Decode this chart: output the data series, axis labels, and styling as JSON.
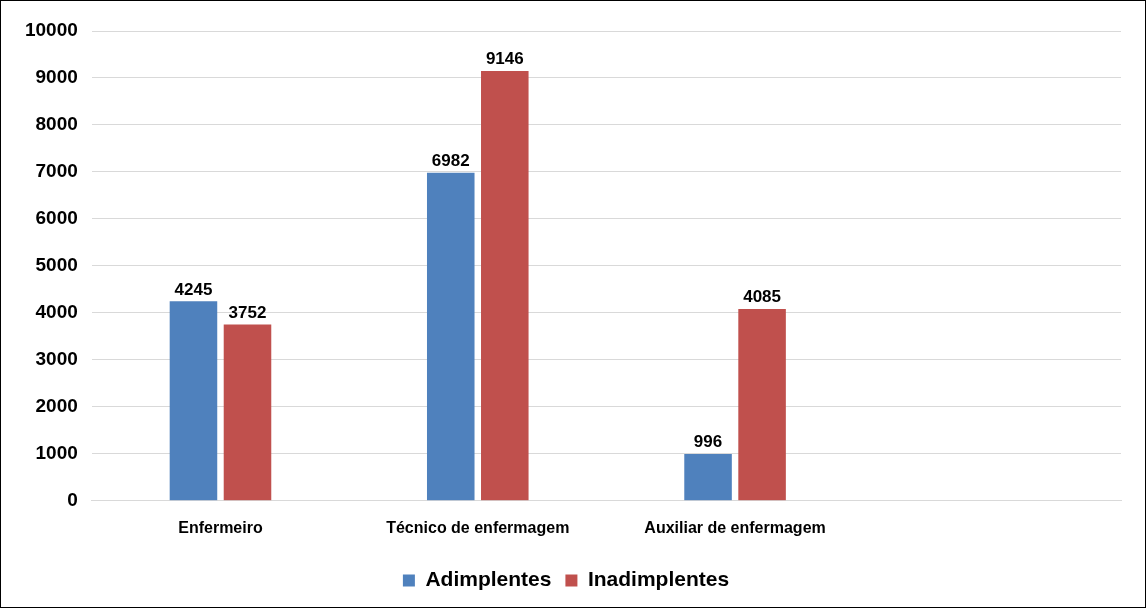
{
  "chart_data": {
    "type": "bar",
    "categories": [
      "Enfermeiro",
      "Técnico de enfermagem",
      "Auxiliar de enfermagem",
      null
    ],
    "series": [
      {
        "name": "Adimplentes",
        "color": "#4f81bd",
        "values": [
          4245,
          6982,
          996,
          null
        ]
      },
      {
        "name": "Inadimplentes",
        "color": "#c0504d",
        "values": [
          3752,
          9146,
          4085,
          null
        ]
      }
    ],
    "ylim": [
      0,
      10000
    ],
    "yticks": [
      0,
      1000,
      2000,
      3000,
      4000,
      5000,
      6000,
      7000,
      8000,
      9000,
      10000
    ],
    "grid": "y",
    "legend": "bottom",
    "data_labels": true
  }
}
